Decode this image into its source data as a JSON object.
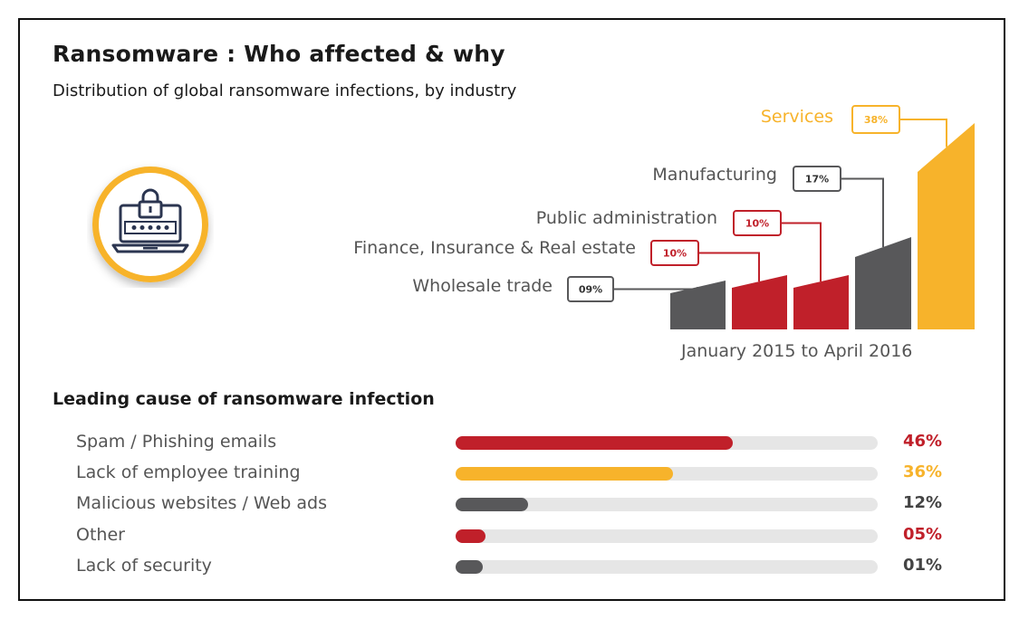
{
  "header": {
    "title": "Ransomware : Who affected & why",
    "subtitle": "Distribution of global ransomware infections, by industry"
  },
  "icon": "laptop-lock-icon",
  "colors": {
    "red": "#c0202a",
    "yellow": "#f7b32b",
    "gray": "#58585a",
    "track": "#e6e6e6"
  },
  "chart_data": [
    {
      "type": "bar",
      "title": "Distribution of global ransomware infections, by industry",
      "categories": [
        "Wholesale trade",
        "Finance, Insurance & Real estate",
        "Public administration",
        "Manufacturing",
        "Services"
      ],
      "values": [
        9,
        10,
        10,
        17,
        38
      ],
      "value_labels": [
        "09%",
        "10%",
        "10%",
        "17%",
        "38%"
      ],
      "bar_colors": [
        "#58585a",
        "#c0202a",
        "#c0202a",
        "#58585a",
        "#f7b32b"
      ],
      "period": "January 2015 to April 2016"
    },
    {
      "type": "bar",
      "orientation": "horizontal",
      "title": "Leading cause of ransomware infection",
      "categories": [
        "Spam / Phishing emails",
        "Lack of employee training",
        "Malicious websites / Web ads",
        "Other",
        "Lack of security"
      ],
      "values": [
        46,
        36,
        12,
        5,
        1
      ],
      "value_labels": [
        "46%",
        "36%",
        "12%",
        "05%",
        "01%"
      ],
      "bar_colors": [
        "#c0202a",
        "#f7b32b",
        "#58585a",
        "#c0202a",
        "#58585a"
      ]
    }
  ]
}
